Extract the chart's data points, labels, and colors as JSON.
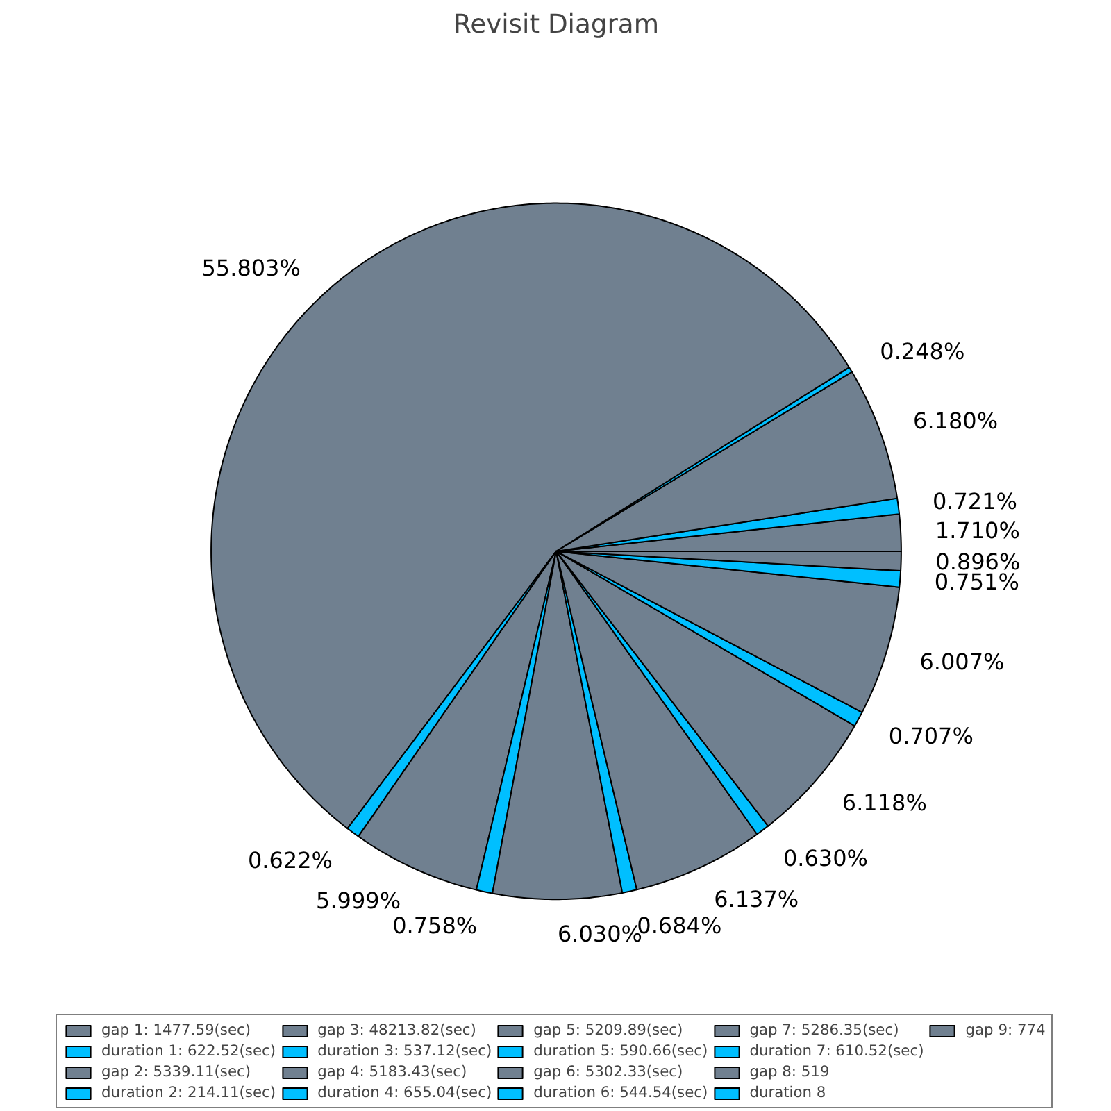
{
  "chart_data": {
    "type": "pie",
    "title": "Revisit Diagram",
    "categories": [
      "gap 1: 1477.59(sec)",
      "duration 1: 622.52(sec)",
      "gap 2: 5339.11(sec)",
      "duration 2: 214.11(sec)",
      "gap 3: 48213.82(sec)",
      "duration 3: 537.12(sec)",
      "gap 4: 5183.43(sec)",
      "duration 4: 655.04(sec)",
      "gap 5: 5209.89(sec)",
      "duration 5: 590.66(sec)",
      "gap 6: 5302.33(sec)",
      "duration 6: 544.54(sec)",
      "gap 7: 5286.35(sec)",
      "duration 7: 610.52(sec)",
      "gap 8: 519",
      "duration 8",
      "gap 9: 774"
    ],
    "values": [
      1.71,
      0.721,
      6.18,
      0.248,
      55.803,
      0.622,
      5.999,
      0.758,
      6.03,
      0.684,
      6.137,
      0.63,
      6.118,
      0.707,
      6.007,
      0.751,
      0.896
    ],
    "value_labels": [
      "1.710%",
      "0.721%",
      "6.180%",
      "0.248%",
      "55.803%",
      "0.622%",
      "5.999%",
      "0.758%",
      "6.030%",
      "0.684%",
      "6.137%",
      "0.630%",
      "6.118%",
      "0.707%",
      "6.007%",
      "0.751%",
      "0.896%"
    ],
    "colors": [
      "#708090",
      "#00bfff",
      "#708090",
      "#00bfff",
      "#708090",
      "#00bfff",
      "#708090",
      "#00bfff",
      "#708090",
      "#00bfff",
      "#708090",
      "#00bfff",
      "#708090",
      "#00bfff",
      "#708090",
      "#00bfff",
      "#708090"
    ],
    "legend": "bottom"
  }
}
